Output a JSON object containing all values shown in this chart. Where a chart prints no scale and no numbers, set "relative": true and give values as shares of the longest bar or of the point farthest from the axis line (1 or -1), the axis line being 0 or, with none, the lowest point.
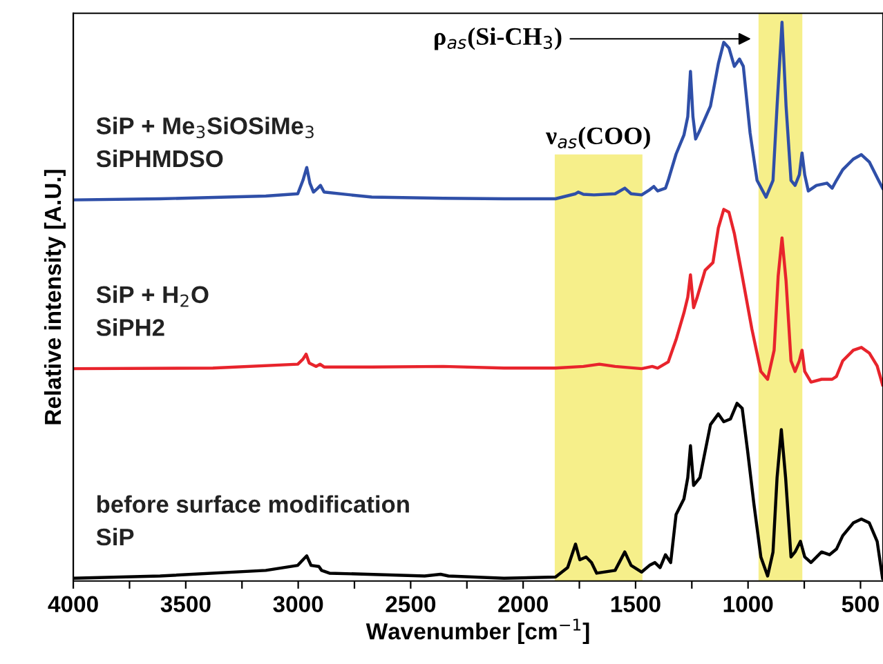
{
  "chart_data": {
    "type": "line",
    "relative": true,
    "xlabel": "Wavenumber [cm$^{−1}$]",
    "ylabel": "Relative intensity [A.U.]",
    "xlim": [
      4000,
      400
    ],
    "xticks": [
      4000,
      {
        "value": 3750,
        "label": null
      },
      3500,
      {
        "value": 3250,
        "label": null
      },
      3000,
      {
        "value": 2750,
        "label": null
      },
      2500,
      {
        "value": 2250,
        "label": null
      },
      2000,
      {
        "value": 1750,
        "label": null
      },
      1500,
      {
        "value": 1250,
        "label": null
      },
      1000,
      {
        "value": 750,
        "label": null
      },
      500
    ],
    "grid": false,
    "legend": false,
    "bands": [
      {
        "axis": "x",
        "from": 1856,
        "to": 1473,
        "label": "ν$_{as}$(COO)",
        "color": "#f6ef8a"
      },
      {
        "axis": "x",
        "from": 950,
        "to": 762,
        "label": "ρ$_{as}$(Si-CH$_{3}$)",
        "color": "#f6ef8a"
      }
    ],
    "series": [
      {
        "name": "SiP + Me$_{3}$SiOSiMe$_{3}$\nSiPHMDSO",
        "color": "#2f4fa8",
        "x": [
          4000,
          3614,
          3144,
          3002,
          2979,
          2962,
          2948,
          2932,
          2913,
          2901,
          2885,
          2673,
          2355,
          2085,
          1856,
          1767,
          1755,
          1732,
          1685,
          1591,
          1548,
          1520,
          1473,
          1438,
          1419,
          1402,
          1367,
          1355,
          1320,
          1285,
          1268,
          1256,
          1245,
          1233,
          1214,
          1167,
          1132,
          1108,
          1085,
          1061,
          1038,
          1021,
          991,
          960,
          920,
          889,
          871,
          849,
          831,
          809,
          791,
          772,
          760,
          748,
          732,
          696,
          649,
          626,
          607,
          579,
          532,
          496,
          461,
          426,
          402
        ],
        "values": [
          0.682,
          0.684,
          0.689,
          0.693,
          0.717,
          0.74,
          0.712,
          0.696,
          0.703,
          0.708,
          0.696,
          0.687,
          0.685,
          0.684,
          0.684,
          0.693,
          0.696,
          0.692,
          0.691,
          0.693,
          0.703,
          0.693,
          0.691,
          0.7,
          0.706,
          0.698,
          0.703,
          0.717,
          0.764,
          0.798,
          0.831,
          0.912,
          0.831,
          0.791,
          0.807,
          0.85,
          0.926,
          0.964,
          0.954,
          0.921,
          0.934,
          0.921,
          0.802,
          0.717,
          0.687,
          0.717,
          0.85,
          1.0,
          0.85,
          0.717,
          0.708,
          0.727,
          0.766,
          0.727,
          0.698,
          0.708,
          0.712,
          0.703,
          0.717,
          0.736,
          0.755,
          0.763,
          0.75,
          0.722,
          0.703
        ]
      },
      {
        "name": "SiP + H$_{2}$O\nSiPH2",
        "color": "#e8242c",
        "x": [
          4000,
          3379,
          3002,
          2979,
          2965,
          2951,
          2920,
          2903,
          2885,
          2673,
          2355,
          2085,
          1856,
          1732,
          1661,
          1591,
          1473,
          1426,
          1402,
          1355,
          1320,
          1285,
          1268,
          1256,
          1242,
          1226,
          1191,
          1156,
          1132,
          1108,
          1085,
          1061,
          1026,
          983,
          943,
          913,
          884,
          866,
          849,
          831,
          809,
          791,
          772,
          760,
          748,
          720,
          673,
          626,
          607,
          579,
          532,
          496,
          461,
          426,
          402
        ],
        "values": [
          0.38,
          0.381,
          0.388,
          0.397,
          0.406,
          0.39,
          0.384,
          0.388,
          0.383,
          0.383,
          0.384,
          0.381,
          0.381,
          0.384,
          0.388,
          0.384,
          0.38,
          0.384,
          0.381,
          0.392,
          0.432,
          0.48,
          0.508,
          0.548,
          0.489,
          0.508,
          0.556,
          0.57,
          0.632,
          0.665,
          0.66,
          0.622,
          0.546,
          0.451,
          0.375,
          0.361,
          0.413,
          0.546,
          0.614,
          0.537,
          0.394,
          0.375,
          0.394,
          0.413,
          0.375,
          0.356,
          0.361,
          0.361,
          0.366,
          0.394,
          0.413,
          0.418,
          0.408,
          0.385,
          0.351
        ]
      },
      {
        "name": "before surface modification\nSiP",
        "color": "#000000",
        "x": [
          4000,
          3614,
          3144,
          3002,
          2979,
          2962,
          2943,
          2908,
          2896,
          2861,
          2438,
          2367,
          2332,
          2085,
          1856,
          1802,
          1767,
          1748,
          1720,
          1696,
          1673,
          1591,
          1548,
          1520,
          1473,
          1438,
          1414,
          1391,
          1367,
          1344,
          1320,
          1285,
          1268,
          1256,
          1242,
          1214,
          1167,
          1132,
          1108,
          1078,
          1049,
          1026,
          1002,
          974,
          943,
          913,
          889,
          871,
          852,
          833,
          809,
          791,
          767,
          748,
          720,
          673,
          638,
          607,
          579,
          532,
          496,
          461,
          426,
          402
        ],
        "values": [
          0.005,
          0.009,
          0.019,
          0.028,
          0.038,
          0.045,
          0.028,
          0.026,
          0.019,
          0.014,
          0.009,
          0.012,
          0.009,
          0.005,
          0.007,
          0.024,
          0.066,
          0.038,
          0.043,
          0.033,
          0.014,
          0.019,
          0.052,
          0.028,
          0.016,
          0.028,
          0.033,
          0.024,
          0.047,
          0.033,
          0.119,
          0.147,
          0.185,
          0.242,
          0.171,
          0.185,
          0.28,
          0.299,
          0.285,
          0.29,
          0.318,
          0.309,
          0.233,
          0.138,
          0.043,
          0.009,
          0.052,
          0.185,
          0.271,
          0.185,
          0.043,
          0.052,
          0.071,
          0.043,
          0.033,
          0.052,
          0.047,
          0.057,
          0.081,
          0.104,
          0.111,
          0.104,
          0.071,
          0.005
        ]
      }
    ]
  }
}
